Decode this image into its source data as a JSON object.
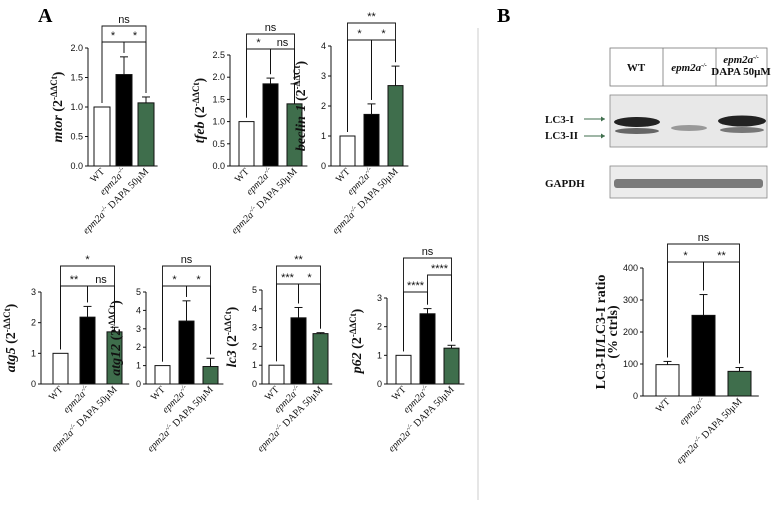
{
  "panels": {
    "A": "A",
    "B": "B"
  },
  "colors": {
    "wt": "#ffffff",
    "mut": "#000000",
    "dapa": "#3f6e4c",
    "axis": "#111111",
    "divider": "#bbbbbb"
  },
  "categories": [
    {
      "name": "WT",
      "sup": ""
    },
    {
      "name": "epm2a",
      "sup": "-/-"
    },
    {
      "name": "epm2a",
      "sup": "-/-",
      "suffix": " DAPA 50μM"
    }
  ],
  "chart_data": [
    {
      "type": "bar",
      "gene": "mtor",
      "ylabel_suffix": " (2",
      "ylabel_sup": "-ΔΔCt",
      "ylabel_close": ")",
      "ylim": [
        0,
        2.0
      ],
      "ticks": [
        "0.0",
        "0.5",
        "1.0",
        "1.5",
        "2.0"
      ],
      "values": [
        1.0,
        1.55,
        1.07
      ],
      "errors": [
        0,
        0.3,
        0.1
      ],
      "sig": [
        {
          "from": 0,
          "to": 2,
          "label": "ns",
          "level": 2
        },
        {
          "from": 0,
          "to": 1,
          "label": "*",
          "level": 1
        },
        {
          "from": 1,
          "to": 2,
          "label": "*",
          "level": 1
        }
      ]
    },
    {
      "type": "bar",
      "gene": "tfeb",
      "ylabel_suffix": " (2",
      "ylabel_sup": "-ΔΔCt",
      "ylabel_close": ")",
      "ylim": [
        0,
        2.5
      ],
      "ticks": [
        "0.0",
        "0.5",
        "1.0",
        "1.5",
        "2.0",
        "2.5"
      ],
      "values": [
        1.0,
        1.85,
        1.4
      ],
      "errors": [
        0,
        0.13,
        0.45
      ],
      "sig": [
        {
          "from": 0,
          "to": 2,
          "label": "ns",
          "level": 2
        },
        {
          "from": 0,
          "to": 1,
          "label": "*",
          "level": 1
        },
        {
          "from": 1,
          "to": 2,
          "label": "ns",
          "level": 1
        }
      ]
    },
    {
      "type": "bar",
      "gene": "beclin-1",
      "ylabel_suffix": " (2",
      "ylabel_sup": "-ΔΔCt",
      "ylabel_close": ")",
      "ylim": [
        0,
        4
      ],
      "ticks": [
        "0",
        "1",
        "2",
        "3",
        "4"
      ],
      "values": [
        1.0,
        1.72,
        2.68
      ],
      "errors": [
        0,
        0.35,
        0.65
      ],
      "sig": [
        {
          "from": 0,
          "to": 2,
          "label": "**",
          "level": 2
        },
        {
          "from": 0,
          "to": 1,
          "label": "*",
          "level": 1
        },
        {
          "from": 1,
          "to": 2,
          "label": "*",
          "level": 1
        }
      ]
    },
    {
      "type": "bar",
      "gene": "atg5",
      "ylabel_suffix": " (2",
      "ylabel_sup": "-ΔΔCt",
      "ylabel_close": ")",
      "ylim": [
        0,
        3
      ],
      "ticks": [
        "0",
        "1",
        "2",
        "3"
      ],
      "values": [
        1.0,
        2.18,
        1.7
      ],
      "errors": [
        0,
        0.35,
        0.15
      ],
      "sig": [
        {
          "from": 0,
          "to": 2,
          "label": "*",
          "level": 2
        },
        {
          "from": 0,
          "to": 1,
          "label": "**",
          "level": 1
        },
        {
          "from": 1,
          "to": 2,
          "label": "ns",
          "level": 1
        }
      ]
    },
    {
      "type": "bar",
      "gene": "atg12",
      "ylabel_suffix": " (2",
      "ylabel_sup": "-ΔΔCt",
      "ylabel_close": ")",
      "ylim": [
        0,
        5
      ],
      "ticks": [
        "0",
        "1",
        "2",
        "3",
        "4",
        "5"
      ],
      "values": [
        1.0,
        3.42,
        0.95
      ],
      "errors": [
        0,
        1.1,
        0.45
      ],
      "sig": [
        {
          "from": 0,
          "to": 2,
          "label": "ns",
          "level": 2
        },
        {
          "from": 0,
          "to": 1,
          "label": "*",
          "level": 1
        },
        {
          "from": 1,
          "to": 2,
          "label": "*",
          "level": 1
        }
      ]
    },
    {
      "type": "bar",
      "gene": "lc3",
      "ylabel_suffix": " (2",
      "ylabel_sup": "-ΔΔCt",
      "ylabel_close": ")",
      "ylim": [
        0,
        5
      ],
      "ticks": [
        "0",
        "1",
        "2",
        "3",
        "4",
        "5"
      ],
      "values": [
        1.0,
        3.52,
        2.68
      ],
      "errors": [
        0,
        0.55,
        0.05
      ],
      "sig": [
        {
          "from": 0,
          "to": 2,
          "label": "**",
          "level": 2
        },
        {
          "from": 0,
          "to": 1,
          "label": "***",
          "level": 1
        },
        {
          "from": 1,
          "to": 2,
          "label": "*",
          "level": 1
        }
      ]
    },
    {
      "type": "bar",
      "gene": "p62",
      "ylabel_suffix": " (2",
      "ylabel_sup": "-ΔΔCt",
      "ylabel_close": ")",
      "ylim": [
        0,
        3
      ],
      "ticks": [
        "0",
        "1",
        "2",
        "3"
      ],
      "values": [
        1.0,
        2.45,
        1.25
      ],
      "errors": [
        0,
        0.18,
        0.1
      ],
      "sig": [
        {
          "from": 0,
          "to": 2,
          "label": "ns",
          "level": 3
        },
        {
          "from": 1,
          "to": 2,
          "label": "****",
          "level": 2
        },
        {
          "from": 0,
          "to": 1,
          "label": "****",
          "level": 1
        }
      ]
    },
    {
      "type": "bar",
      "gene": "LC3-II/LC3-I ratio",
      "ylabel_line2": "(% ctrls)",
      "italic": false,
      "ylim": [
        0,
        400
      ],
      "ticks": [
        "0",
        "100",
        "200",
        "300",
        "400"
      ],
      "values": [
        98,
        252,
        77
      ],
      "errors": [
        10,
        65,
        12
      ],
      "sig": [
        {
          "from": 0,
          "to": 2,
          "label": "ns",
          "level": 2
        },
        {
          "from": 0,
          "to": 1,
          "label": "*",
          "level": 1
        },
        {
          "from": 1,
          "to": 2,
          "label": "**",
          "level": 1
        }
      ]
    }
  ],
  "blot": {
    "lanes": [
      "WT",
      "epm2a",
      "epm2a"
    ],
    "lane_sups": [
      "",
      "-/-",
      "-/-"
    ],
    "lane3_line2": "DAPA 50μM",
    "bands": [
      "LC3-I",
      "LC3-II",
      "GAPDH"
    ]
  }
}
